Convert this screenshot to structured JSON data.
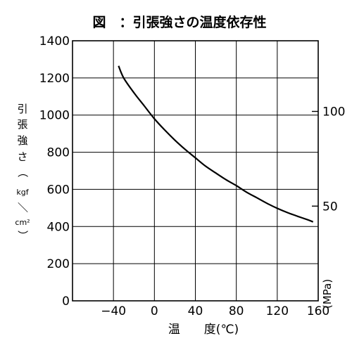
{
  "chart_data": {
    "type": "line",
    "title": "図　：引張強さの温度依存性",
    "xlabel": "温　　度(℃)",
    "ylabel": "引張強さ（kgf／cm²）",
    "ylabel_parts": [
      "引",
      "張",
      "強",
      "さ",
      "（",
      "kgf",
      "／",
      "cm²",
      "）"
    ],
    "y2label": "(MPa)",
    "xlim": [
      -80,
      160
    ],
    "ylim": [
      0,
      1400
    ],
    "x_ticks": [
      -40,
      0,
      40,
      80,
      120,
      160
    ],
    "x_tick_labels": [
      "−40",
      "0",
      "40",
      "80",
      "120",
      "160"
    ],
    "y_ticks": [
      0,
      200,
      400,
      600,
      800,
      1000,
      1200,
      1400
    ],
    "y_tick_labels": [
      "0",
      "200",
      "400",
      "600",
      "800",
      "1000",
      "1200",
      "1400"
    ],
    "y2_ticks": [
      50,
      100
    ],
    "y2_tick_labels": [
      "50",
      "100"
    ],
    "grid": true,
    "series": [
      {
        "x": [
          -35,
          -30,
          -20,
          -10,
          0,
          10,
          20,
          30,
          40,
          50,
          60,
          70,
          80,
          90,
          100,
          110,
          120,
          130,
          140,
          150,
          155
        ],
        "values": [
          1265,
          1200,
          1120,
          1050,
          980,
          920,
          865,
          815,
          770,
          725,
          688,
          652,
          620,
          585,
          555,
          525,
          498,
          475,
          455,
          436,
          425
        ]
      }
    ]
  }
}
